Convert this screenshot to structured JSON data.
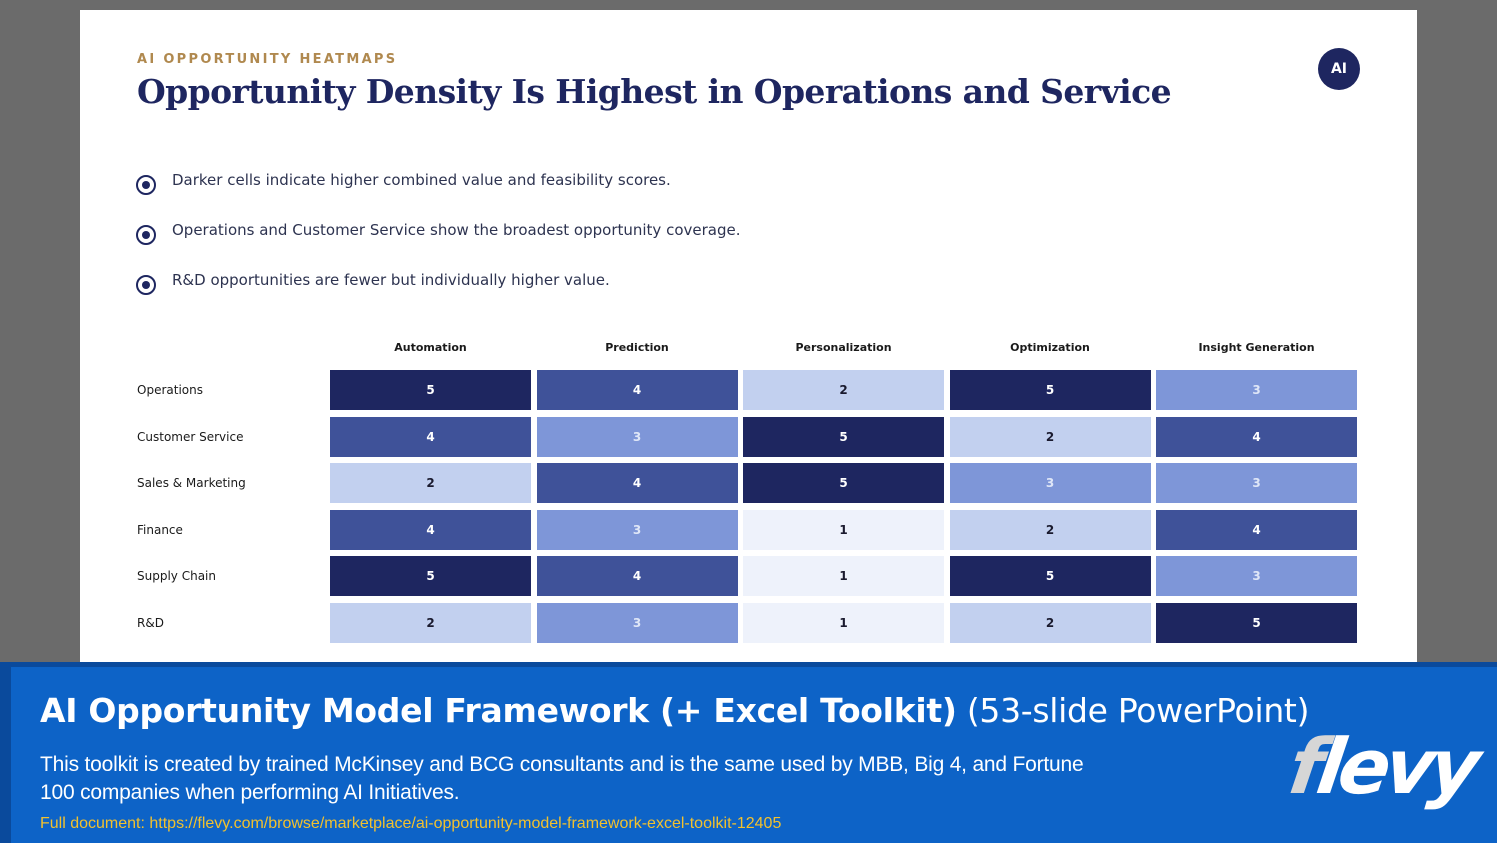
{
  "slide": {
    "eyebrow": "AI OPPORTUNITY HEATMAPS",
    "title": "Opportunity Density Is Highest in Operations and Service",
    "badge": "AI",
    "bullets": [
      "Darker cells indicate higher combined value and feasibility scores.",
      "Operations and Customer Service show the broadest opportunity coverage.",
      "R&D opportunities are fewer but individually higher value."
    ]
  },
  "heatmap": {
    "columns": [
      "Automation",
      "Prediction",
      "Personalization",
      "Optimization",
      "Insight Generation"
    ],
    "rows": [
      {
        "label": "Operations",
        "values": [
          5,
          4,
          2,
          5,
          3
        ]
      },
      {
        "label": "Customer Service",
        "values": [
          4,
          3,
          5,
          2,
          4
        ]
      },
      {
        "label": "Sales & Marketing",
        "values": [
          2,
          4,
          5,
          3,
          3
        ]
      },
      {
        "label": "Finance",
        "values": [
          4,
          3,
          1,
          2,
          4
        ]
      },
      {
        "label": "Supply Chain",
        "values": [
          5,
          4,
          1,
          5,
          3
        ]
      },
      {
        "label": "R&D",
        "values": [
          2,
          3,
          1,
          2,
          5
        ]
      }
    ],
    "colors": {
      "1": {
        "bg": "#eef2fb",
        "fg": "#1a1a2e"
      },
      "2": {
        "bg": "#c2d0ef",
        "fg": "#1a1a2e"
      },
      "3": {
        "bg": "#7e96d8",
        "fg": "#dfe6f7"
      },
      "4": {
        "bg": "#3f5299",
        "fg": "#ffffff"
      },
      "5": {
        "bg": "#1e2660",
        "fg": "#ffffff"
      }
    }
  },
  "banner": {
    "title_bold": "AI Opportunity Model Framework (+ Excel Toolkit)",
    "title_light": " (53-slide PowerPoint)",
    "description": "This toolkit is created by trained McKinsey and BCG consultants and is the same used by MBB, Big 4, and Fortune 100 companies when performing AI Initiatives.",
    "link": "Full document: https://flevy.com/browse/marketplace/ai-opportunity-model-framework-excel-toolkit-12405",
    "logo_f": "f",
    "logo_rest": "levy"
  }
}
